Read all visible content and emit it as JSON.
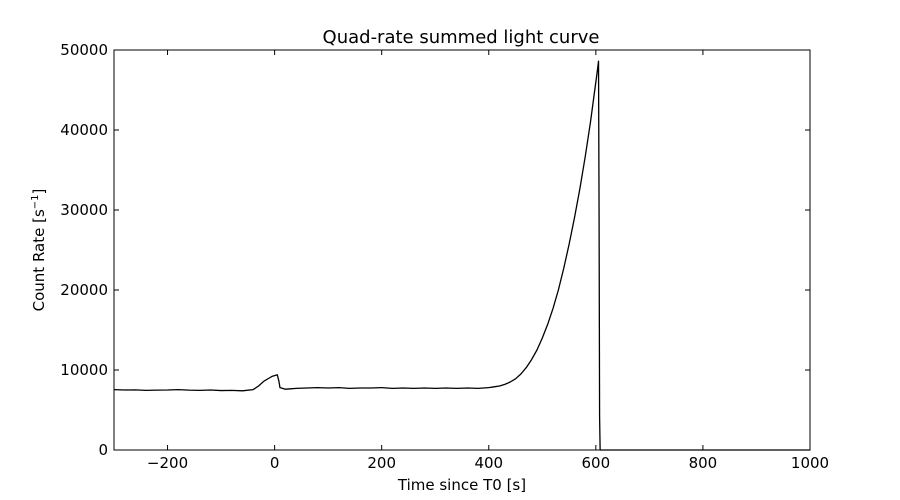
{
  "chart_data": {
    "type": "line",
    "title": "Quad-rate summed light curve",
    "xlabel": "Time since T0 [s]",
    "ylabel_main": "Count Rate [s",
    "ylabel_sup": "−1",
    "ylabel_end": "]",
    "xlim": [
      -300,
      1000
    ],
    "ylim": [
      0,
      50000
    ],
    "x_ticks": [
      -200,
      0,
      200,
      400,
      600,
      800,
      1000
    ],
    "x_tick_labels": [
      "−200",
      "0",
      "200",
      "400",
      "600",
      "800",
      "1000"
    ],
    "y_ticks": [
      0,
      10000,
      20000,
      30000,
      40000,
      50000
    ],
    "y_tick_labels": [
      "0",
      "10000",
      "20000",
      "30000",
      "40000",
      "50000"
    ],
    "grid": false,
    "line_color": "#000000",
    "series": [
      {
        "x": [
          -300,
          -280,
          -260,
          -240,
          -220,
          -200,
          -180,
          -160,
          -140,
          -120,
          -100,
          -80,
          -60,
          -40,
          -30,
          -20,
          -10,
          -5,
          0,
          5,
          8,
          10,
          15,
          20,
          30,
          40,
          60,
          80,
          100,
          120,
          140,
          160,
          180,
          200,
          220,
          240,
          260,
          280,
          300,
          320,
          340,
          360,
          380,
          400,
          410,
          420,
          430,
          440,
          450,
          460,
          470,
          480,
          490,
          500,
          510,
          520,
          530,
          540,
          550,
          560,
          570,
          580,
          590,
          595,
          600,
          603,
          605,
          606,
          607,
          608,
          609,
          610,
          620,
          700,
          800,
          900,
          1000
        ],
        "y": [
          7550,
          7500,
          7520,
          7450,
          7480,
          7500,
          7550,
          7480,
          7450,
          7500,
          7430,
          7450,
          7400,
          7550,
          8000,
          8600,
          9000,
          9200,
          9300,
          9400,
          8600,
          7800,
          7700,
          7600,
          7650,
          7700,
          7750,
          7800,
          7750,
          7800,
          7700,
          7750,
          7750,
          7800,
          7700,
          7750,
          7700,
          7750,
          7700,
          7750,
          7700,
          7750,
          7700,
          7800,
          7900,
          8000,
          8200,
          8500,
          8900,
          9500,
          10300,
          11300,
          12500,
          14000,
          15700,
          17700,
          20000,
          22700,
          25700,
          29000,
          32600,
          36600,
          41000,
          43500,
          46000,
          47500,
          48600,
          30000,
          4200,
          0,
          0,
          0,
          0,
          0,
          0,
          0,
          0
        ]
      }
    ]
  }
}
